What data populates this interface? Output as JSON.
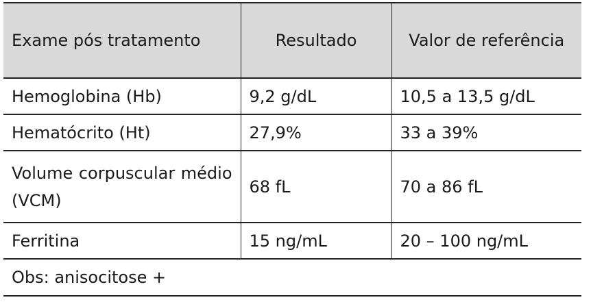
{
  "table": {
    "header": [
      "Exame pós tratamento",
      "Resultado",
      "Valor de referência"
    ],
    "rows": [
      [
        "Hemoglobina (Hb)",
        "9,2 g/dL",
        "10,5 a 13,5 g/dL"
      ],
      [
        "Hematócrito (Ht)",
        "27,9%",
        "33 a 39%"
      ],
      [
        "Volume corpuscular médio (VCM)",
        "68 fL",
        "70 a 86 fL"
      ],
      [
        "Ferritina",
        "15 ng/mL",
        "20 – 100 ng/mL"
      ]
    ],
    "note": "Obs: anisocitose +"
  }
}
